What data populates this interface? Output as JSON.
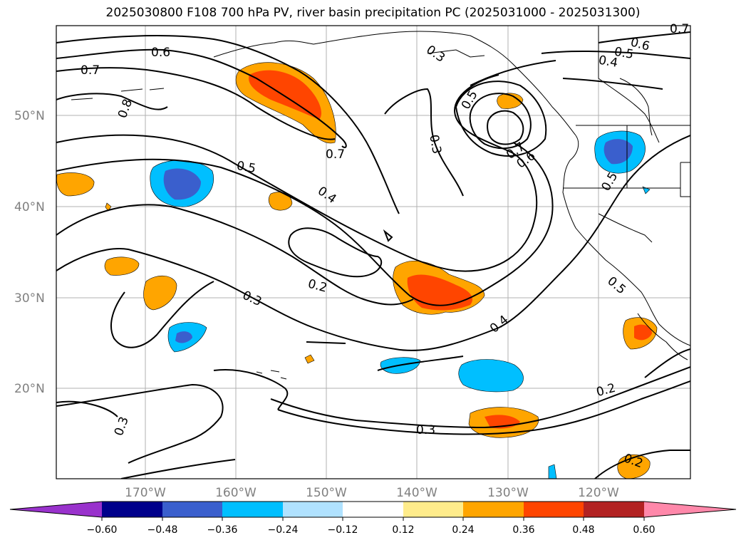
{
  "title": "2025030800 F108 700 hPa PV, river basin precipitation PC (2025031000 - 2025031300)",
  "map": {
    "lat_labels": [
      "50°N",
      "40°N",
      "30°N",
      "20°N"
    ],
    "lon_labels": [
      "170°W",
      "160°W",
      "150°W",
      "140°W",
      "130°W",
      "120°W"
    ],
    "gridlines": true
  },
  "contour_labels": [
    "0.7",
    "0.6",
    "0.8",
    "0.5",
    "0.4",
    "0.7",
    "0.3",
    "0.2",
    "0.3",
    "0.3",
    "0.5",
    "0.3",
    "0.7",
    "0.6",
    "0.4",
    "0.6",
    "0.5",
    "0.4",
    "0.7",
    "0.5",
    "0.5",
    "0.3",
    "0.2",
    "0.2",
    "0.3"
  ],
  "colorbar": {
    "ticks": [
      "−0.60",
      "−0.48",
      "−0.36",
      "−0.24",
      "−0.12",
      "0.12",
      "0.24",
      "0.36",
      "0.48",
      "0.60"
    ],
    "colors": [
      "#9932cc",
      "#00008b",
      "#3a5fcd",
      "#00bfff",
      "#b0e2ff",
      "#ffffff",
      "#ffec8b",
      "#ffa500",
      "#ff4500",
      "#b22222",
      "#ff88aa"
    ],
    "extend": "both"
  }
}
